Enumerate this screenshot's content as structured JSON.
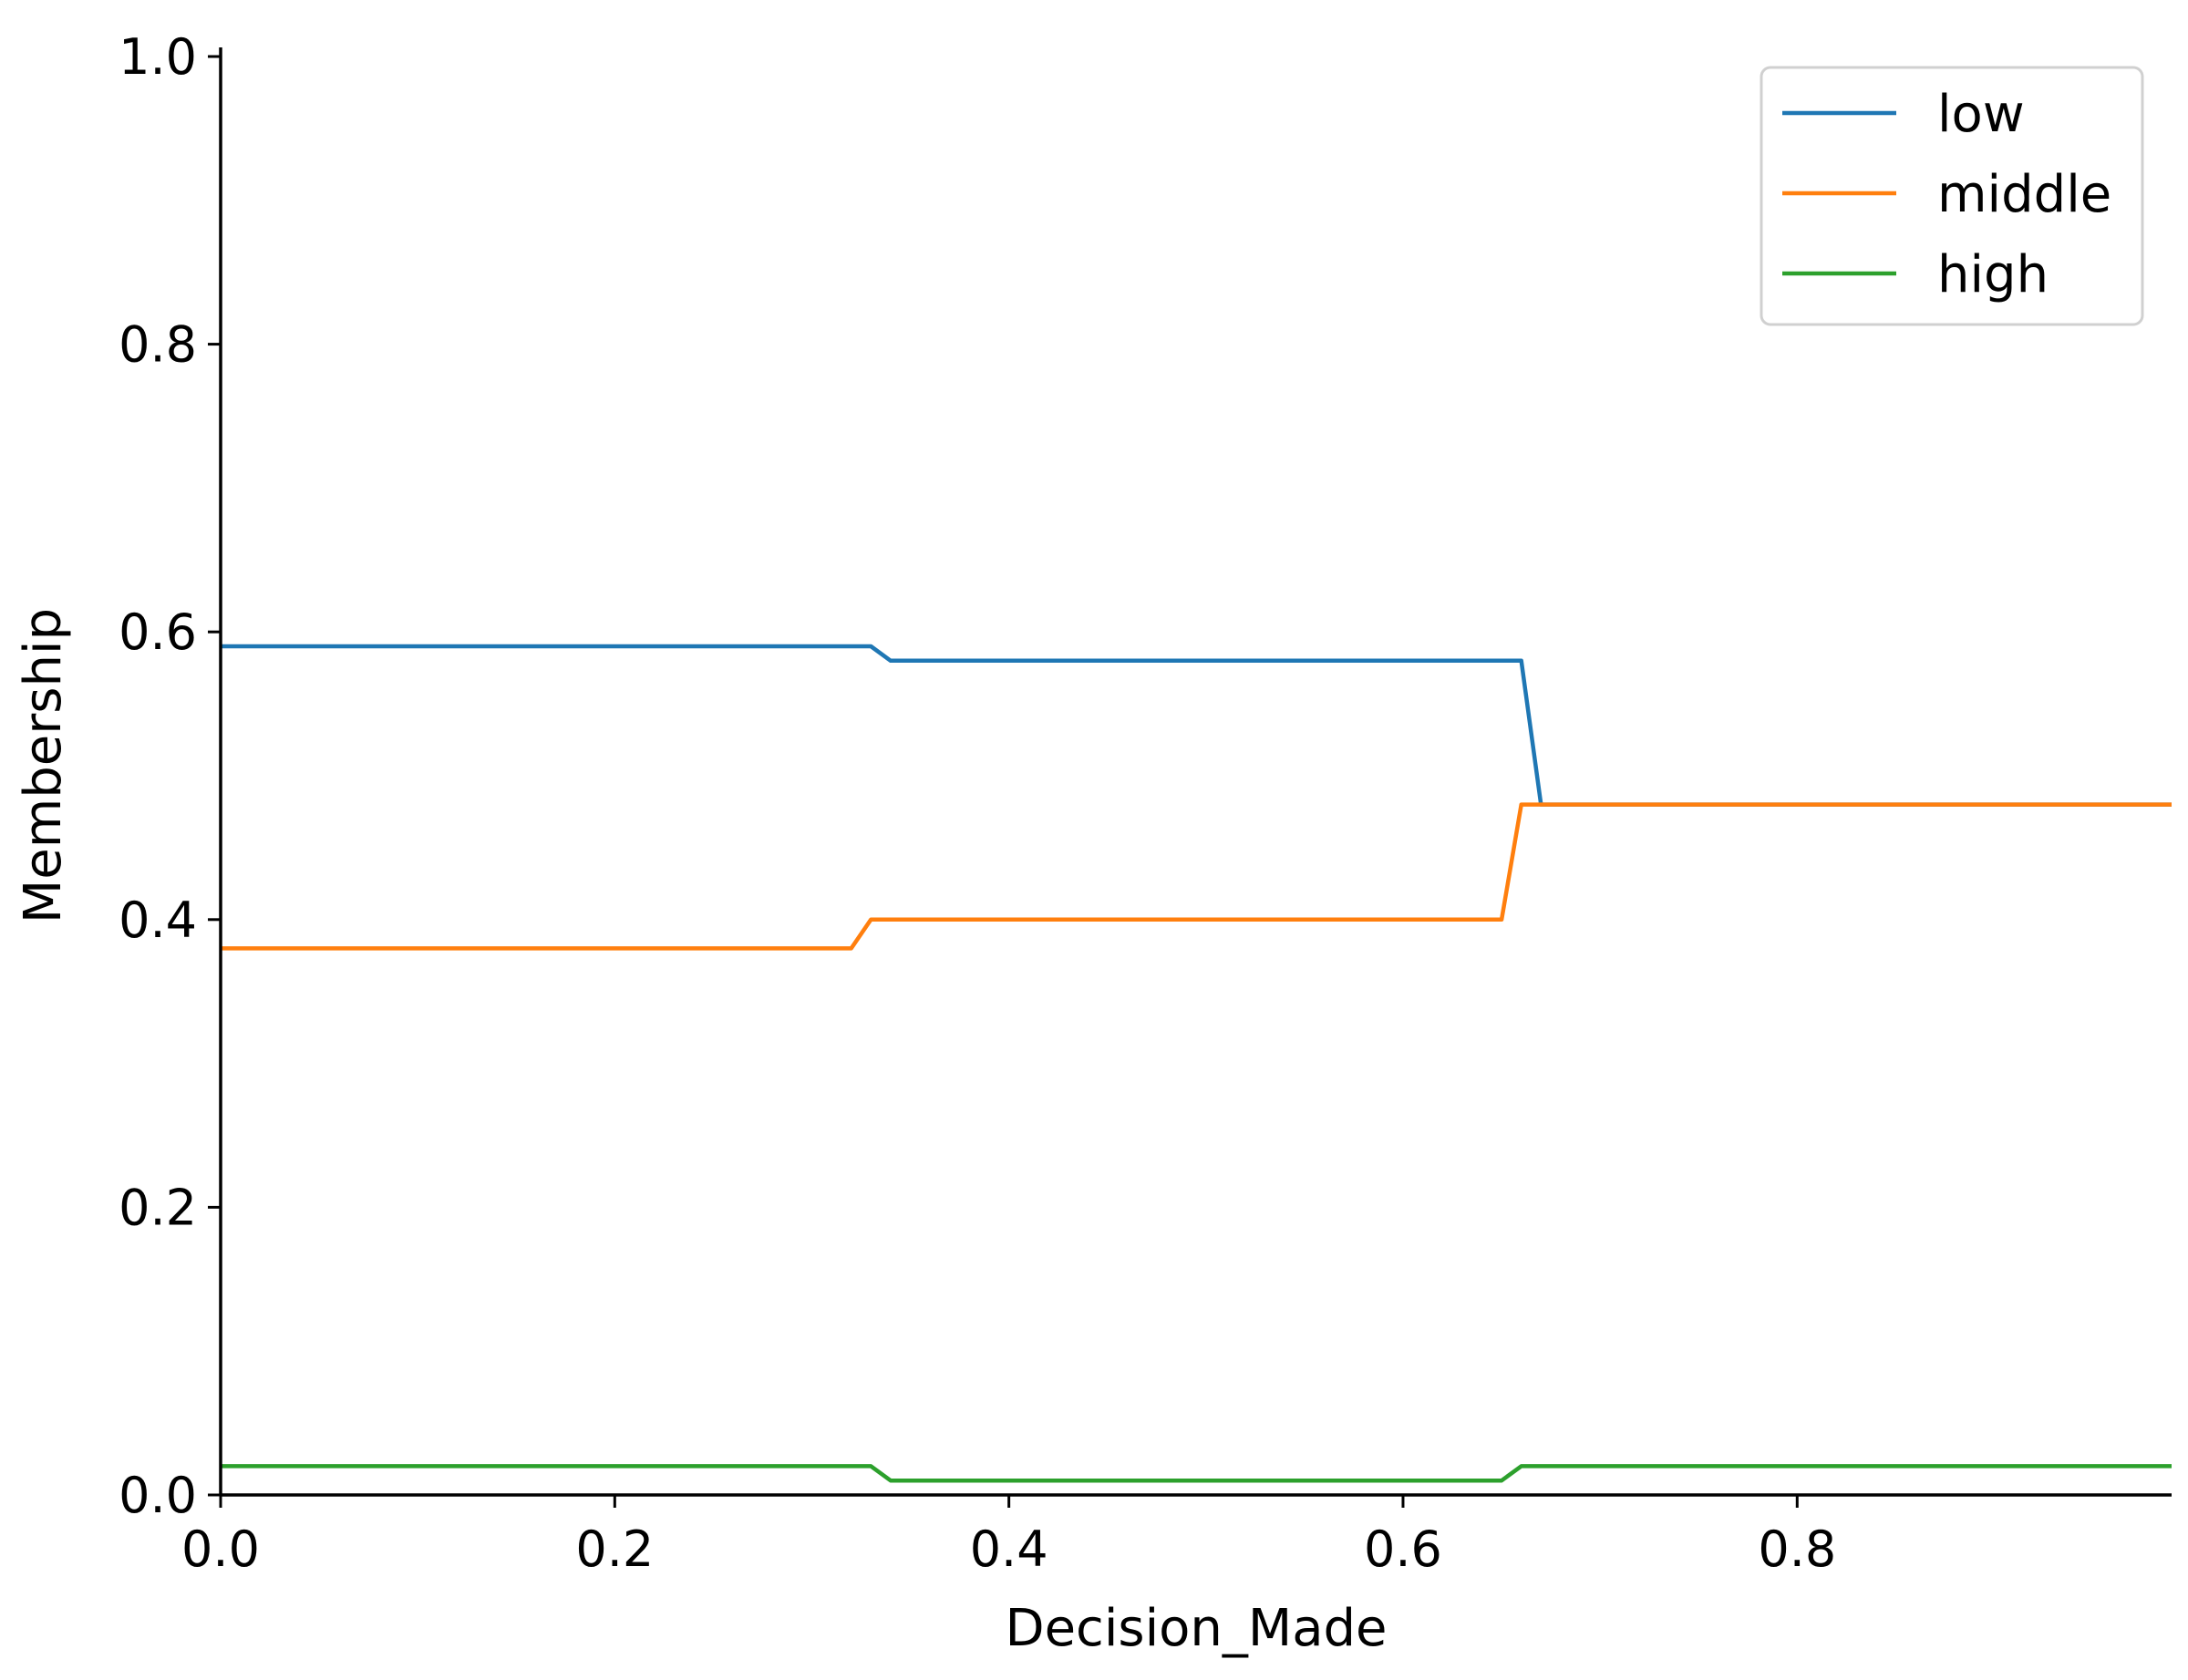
{
  "chart_data": {
    "type": "line",
    "title": "",
    "xlabel": "Decision_Made",
    "ylabel": "Membership",
    "xlim": [
      0,
      0.99
    ],
    "ylim": [
      0,
      1.0
    ],
    "xticks": [
      0.0,
      0.2,
      0.4,
      0.6,
      0.8
    ],
    "xtick_labels": [
      "0.0",
      "0.2",
      "0.4",
      "0.6",
      "0.8"
    ],
    "yticks": [
      0.0,
      0.2,
      0.4,
      0.6,
      0.8,
      1.0
    ],
    "ytick_labels": [
      "0.0",
      "0.2",
      "0.4",
      "0.6",
      "0.8",
      "1.0"
    ],
    "grid": false,
    "legend_position": "top-right",
    "series": [
      {
        "name": "low",
        "color": "#1f77b4",
        "x": [
          0.0,
          0.33,
          0.34,
          0.66,
          0.67,
          0.99
        ],
        "y": [
          0.59,
          0.59,
          0.58,
          0.58,
          0.48,
          0.48
        ]
      },
      {
        "name": "middle",
        "color": "#ff7f0e",
        "x": [
          0.0,
          0.32,
          0.33,
          0.65,
          0.66,
          0.99
        ],
        "y": [
          0.38,
          0.38,
          0.4,
          0.4,
          0.48,
          0.48
        ]
      },
      {
        "name": "high",
        "color": "#2ca02c",
        "x": [
          0.0,
          0.33,
          0.34,
          0.65,
          0.66,
          0.99
        ],
        "y": [
          0.02,
          0.02,
          0.01,
          0.01,
          0.02,
          0.02
        ]
      }
    ]
  }
}
